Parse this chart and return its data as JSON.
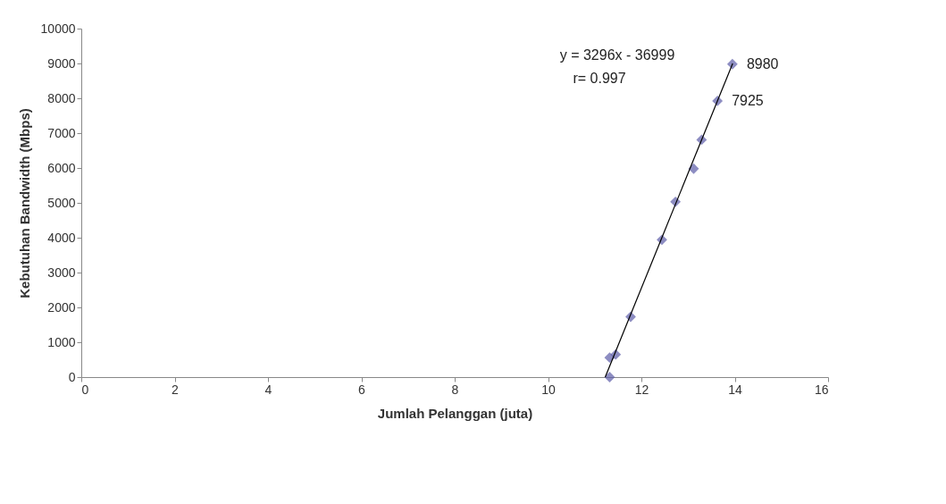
{
  "chart_data": {
    "type": "scatter",
    "xlabel": "Jumlah Pelanggan (juta)",
    "ylabel": "Kebutuhan Bandwidth (Mbps)",
    "xlim": [
      0,
      16
    ],
    "xticks": [
      0,
      2,
      4,
      6,
      8,
      10,
      12,
      14,
      16
    ],
    "ylim": [
      0,
      10000
    ],
    "yticks": [
      0,
      1000,
      2000,
      3000,
      4000,
      5000,
      6000,
      7000,
      8000,
      9000,
      10000
    ],
    "grid": false,
    "marker": "diamond",
    "series": [
      {
        "color": "#5c5ca8",
        "x": [
          11.32,
          11.32,
          11.45,
          11.77,
          12.44,
          12.73,
          13.12,
          13.29,
          13.63,
          13.95
        ],
        "values": [
          0,
          560,
          650,
          1730,
          3940,
          5030,
          5980,
          6810,
          7925,
          8980
        ],
        "value_labels": [
          null,
          null,
          null,
          null,
          null,
          null,
          null,
          null,
          "7925",
          "8980"
        ]
      },
      {
        "type": "line",
        "marker": "none",
        "color": "#000000",
        "x": [
          11.225,
          13.956
        ],
        "values": [
          0,
          9000
        ]
      }
    ],
    "annotations": [
      "y = 3296x - 36999",
      "r= 0.997"
    ]
  }
}
